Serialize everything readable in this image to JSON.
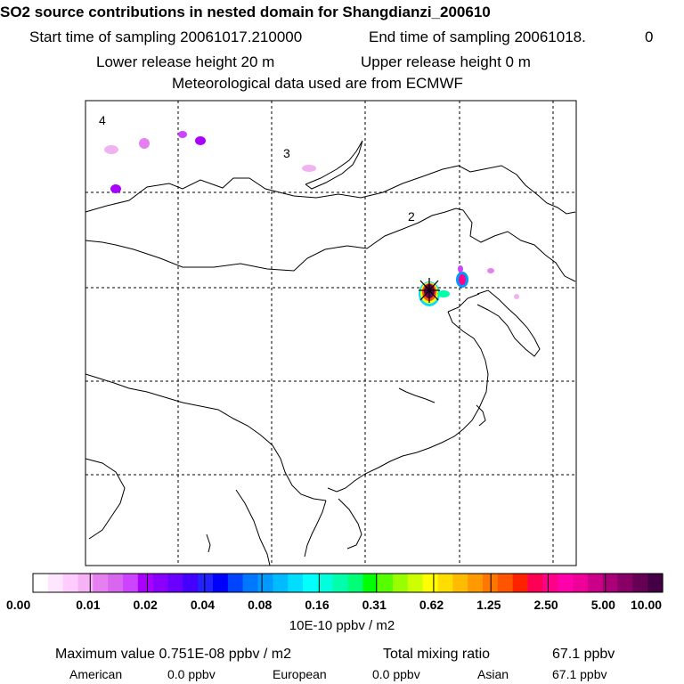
{
  "header": {
    "title": "SO2 source contributions in nested domain for Shangdianzi_200610",
    "start_label": "Start time of sampling 20061017.210000",
    "end_label": "End time of sampling 20061018.",
    "end_suffix": "0",
    "lower_label": "Lower release height   20 m",
    "upper_label": "Upper release height    0 m",
    "met_label": "Meteorological data used are from ECMWF"
  },
  "chart_data": {
    "type": "heatmap",
    "region_labels": [
      "4",
      "3",
      "2"
    ],
    "colorbar": {
      "ticks": [
        "0.00",
        "0.01",
        "0.02",
        "0.04",
        "0.08",
        "0.16",
        "0.31",
        "0.62",
        "1.25",
        "2.50",
        "5.00",
        "10.00"
      ],
      "units": "10E-10 ppbv / m2",
      "colors": [
        "#ffffff",
        "#ffe6ff",
        "#ffccff",
        "#f5b3f5",
        "#e680f0",
        "#d966ee",
        "#cc44ff",
        "#aa00ff",
        "#8a00ff",
        "#6a00ff",
        "#4400ff",
        "#2222ff",
        "#0000ff",
        "#0044ff",
        "#0077ff",
        "#0099ff",
        "#00bbff",
        "#00ddff",
        "#00ffff",
        "#00ffdd",
        "#00ffaa",
        "#00ff77",
        "#00ff00",
        "#55ff00",
        "#99ff00",
        "#ccff00",
        "#ffff00",
        "#ffdd00",
        "#ffbb00",
        "#ff9900",
        "#ff7700",
        "#ff5500",
        "#ff2200",
        "#ff0055",
        "#ff0088",
        "#ff00aa",
        "#ee0099",
        "#cc0088",
        "#aa0077",
        "#880066",
        "#660055",
        "#440044"
      ]
    }
  },
  "stats": {
    "max_label": "Maximum value  0.751E-08 ppbv / m2",
    "total_label": "Total mixing ratio",
    "total_value": "67.1 ppbv",
    "american_label": "American",
    "american_value": "0.0 ppbv",
    "european_label": "European",
    "european_value": "0.0 ppbv",
    "asian_label": "Asian",
    "asian_value": "67.1 ppbv"
  },
  "colors": {
    "frame": "#000000",
    "grid": "#000000",
    "text": "#000000"
  }
}
